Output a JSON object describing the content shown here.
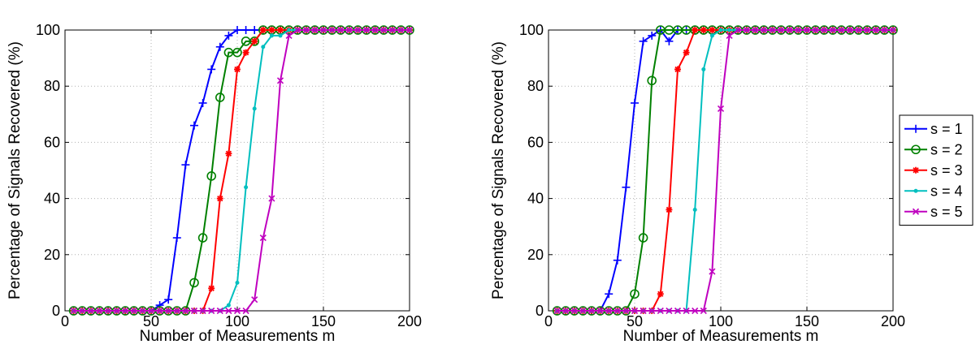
{
  "chart_data": [
    {
      "type": "line",
      "xlabel": "Number of Measurements m",
      "ylabel": "Percentage of Signals Recovered (%)",
      "xlim": [
        0,
        200
      ],
      "ylim": [
        0,
        100
      ],
      "xticks": [
        0,
        50,
        100,
        150,
        200
      ],
      "yticks": [
        0,
        20,
        40,
        60,
        80,
        100
      ],
      "grid": true,
      "legend": "none",
      "series": [
        {
          "name": "s = 1",
          "color": "#0000ff",
          "marker": "plus",
          "x": [
            5,
            10,
            15,
            20,
            25,
            30,
            35,
            40,
            45,
            50,
            55,
            60,
            65,
            70,
            75,
            80,
            85,
            90,
            95,
            100,
            105,
            110,
            115,
            120,
            125,
            130,
            135,
            140,
            145,
            150,
            155,
            160,
            165,
            170,
            175,
            180,
            185,
            190,
            195,
            200
          ],
          "y": [
            0,
            0,
            0,
            0,
            0,
            0,
            0,
            0,
            0,
            0,
            2,
            4,
            26,
            52,
            66,
            74,
            86,
            94,
            98,
            100,
            100,
            100,
            100,
            100,
            100,
            100,
            100,
            100,
            100,
            100,
            100,
            100,
            100,
            100,
            100,
            100,
            100,
            100,
            100,
            100
          ]
        },
        {
          "name": "s = 2",
          "color": "#008000",
          "marker": "circle",
          "x": [
            5,
            10,
            15,
            20,
            25,
            30,
            35,
            40,
            45,
            50,
            55,
            60,
            65,
            70,
            75,
            80,
            85,
            90,
            95,
            100,
            105,
            110,
            115,
            120,
            125,
            130,
            135,
            140,
            145,
            150,
            155,
            160,
            165,
            170,
            175,
            180,
            185,
            190,
            195,
            200
          ],
          "y": [
            0,
            0,
            0,
            0,
            0,
            0,
            0,
            0,
            0,
            0,
            0,
            0,
            0,
            0,
            10,
            26,
            48,
            76,
            92,
            92,
            96,
            96,
            100,
            100,
            100,
            100,
            100,
            100,
            100,
            100,
            100,
            100,
            100,
            100,
            100,
            100,
            100,
            100,
            100,
            100
          ]
        },
        {
          "name": "s = 3",
          "color": "#ff0000",
          "marker": "star",
          "x": [
            5,
            10,
            15,
            20,
            25,
            30,
            35,
            40,
            45,
            50,
            55,
            60,
            65,
            70,
            75,
            80,
            85,
            90,
            95,
            100,
            105,
            110,
            115,
            120,
            125,
            130,
            135,
            140,
            145,
            150,
            155,
            160,
            165,
            170,
            175,
            180,
            185,
            190,
            195,
            200
          ],
          "y": [
            0,
            0,
            0,
            0,
            0,
            0,
            0,
            0,
            0,
            0,
            0,
            0,
            0,
            0,
            0,
            0,
            8,
            40,
            56,
            86,
            92,
            96,
            100,
            100,
            100,
            100,
            100,
            100,
            100,
            100,
            100,
            100,
            100,
            100,
            100,
            100,
            100,
            100,
            100,
            100
          ]
        },
        {
          "name": "s = 4",
          "color": "#00bfbf",
          "marker": "dot",
          "x": [
            5,
            10,
            15,
            20,
            25,
            30,
            35,
            40,
            45,
            50,
            55,
            60,
            65,
            70,
            75,
            80,
            85,
            90,
            95,
            100,
            105,
            110,
            115,
            120,
            125,
            130,
            135,
            140,
            145,
            150,
            155,
            160,
            165,
            170,
            175,
            180,
            185,
            190,
            195,
            200
          ],
          "y": [
            0,
            0,
            0,
            0,
            0,
            0,
            0,
            0,
            0,
            0,
            0,
            0,
            0,
            0,
            0,
            0,
            0,
            0,
            2,
            10,
            44,
            72,
            94,
            98,
            98,
            100,
            100,
            100,
            100,
            100,
            100,
            100,
            100,
            100,
            100,
            100,
            100,
            100,
            100,
            100
          ]
        },
        {
          "name": "s = 5",
          "color": "#bf00bf",
          "marker": "x",
          "x": [
            5,
            10,
            15,
            20,
            25,
            30,
            35,
            40,
            45,
            50,
            55,
            60,
            65,
            70,
            75,
            80,
            85,
            90,
            95,
            100,
            105,
            110,
            115,
            120,
            125,
            130,
            135,
            140,
            145,
            150,
            155,
            160,
            165,
            170,
            175,
            180,
            185,
            190,
            195,
            200
          ],
          "y": [
            0,
            0,
            0,
            0,
            0,
            0,
            0,
            0,
            0,
            0,
            0,
            0,
            0,
            0,
            0,
            0,
            0,
            0,
            0,
            0,
            0,
            4,
            26,
            40,
            82,
            98,
            100,
            100,
            100,
            100,
            100,
            100,
            100,
            100,
            100,
            100,
            100,
            100,
            100,
            100
          ]
        }
      ]
    },
    {
      "type": "line",
      "xlabel": "Number of Measurements m",
      "ylabel": "Percentage of Signals Recovered (%)",
      "xlim": [
        0,
        200
      ],
      "ylim": [
        0,
        100
      ],
      "xticks": [
        0,
        50,
        100,
        150,
        200
      ],
      "yticks": [
        0,
        20,
        40,
        60,
        80,
        100
      ],
      "grid": true,
      "legend": "outside-right",
      "series": [
        {
          "name": "s = 1",
          "color": "#0000ff",
          "marker": "plus",
          "x": [
            5,
            10,
            15,
            20,
            25,
            30,
            35,
            40,
            45,
            50,
            55,
            60,
            65,
            70,
            75,
            80,
            85,
            90,
            95,
            100,
            105,
            110,
            115,
            120,
            125,
            130,
            135,
            140,
            145,
            150,
            155,
            160,
            165,
            170,
            175,
            180,
            185,
            190,
            195,
            200
          ],
          "y": [
            0,
            0,
            0,
            0,
            0,
            0,
            6,
            18,
            44,
            74,
            96,
            98,
            100,
            96,
            100,
            100,
            100,
            100,
            100,
            100,
            100,
            100,
            100,
            100,
            100,
            100,
            100,
            100,
            100,
            100,
            100,
            100,
            100,
            100,
            100,
            100,
            100,
            100,
            100,
            100
          ]
        },
        {
          "name": "s = 2",
          "color": "#008000",
          "marker": "circle",
          "x": [
            5,
            10,
            15,
            20,
            25,
            30,
            35,
            40,
            45,
            50,
            55,
            60,
            65,
            70,
            75,
            80,
            85,
            90,
            95,
            100,
            105,
            110,
            115,
            120,
            125,
            130,
            135,
            140,
            145,
            150,
            155,
            160,
            165,
            170,
            175,
            180,
            185,
            190,
            195,
            200
          ],
          "y": [
            0,
            0,
            0,
            0,
            0,
            0,
            0,
            0,
            0,
            6,
            26,
            82,
            100,
            100,
            100,
            100,
            100,
            100,
            100,
            100,
            100,
            100,
            100,
            100,
            100,
            100,
            100,
            100,
            100,
            100,
            100,
            100,
            100,
            100,
            100,
            100,
            100,
            100,
            100,
            100
          ]
        },
        {
          "name": "s = 3",
          "color": "#ff0000",
          "marker": "star",
          "x": [
            5,
            10,
            15,
            20,
            25,
            30,
            35,
            40,
            45,
            50,
            55,
            60,
            65,
            70,
            75,
            80,
            85,
            90,
            95,
            100,
            105,
            110,
            115,
            120,
            125,
            130,
            135,
            140,
            145,
            150,
            155,
            160,
            165,
            170,
            175,
            180,
            185,
            190,
            195,
            200
          ],
          "y": [
            0,
            0,
            0,
            0,
            0,
            0,
            0,
            0,
            0,
            0,
            0,
            0,
            6,
            36,
            86,
            92,
            100,
            100,
            100,
            100,
            100,
            100,
            100,
            100,
            100,
            100,
            100,
            100,
            100,
            100,
            100,
            100,
            100,
            100,
            100,
            100,
            100,
            100,
            100,
            100
          ]
        },
        {
          "name": "s = 4",
          "color": "#00bfbf",
          "marker": "dot",
          "x": [
            5,
            10,
            15,
            20,
            25,
            30,
            35,
            40,
            45,
            50,
            55,
            60,
            65,
            70,
            75,
            80,
            85,
            90,
            95,
            100,
            105,
            110,
            115,
            120,
            125,
            130,
            135,
            140,
            145,
            150,
            155,
            160,
            165,
            170,
            175,
            180,
            185,
            190,
            195,
            200
          ],
          "y": [
            0,
            0,
            0,
            0,
            0,
            0,
            0,
            0,
            0,
            0,
            0,
            0,
            0,
            0,
            0,
            0,
            36,
            86,
            98,
            100,
            100,
            100,
            100,
            100,
            100,
            100,
            100,
            100,
            100,
            100,
            100,
            100,
            100,
            100,
            100,
            100,
            100,
            100,
            100,
            100
          ]
        },
        {
          "name": "s = 5",
          "color": "#bf00bf",
          "marker": "x",
          "x": [
            5,
            10,
            15,
            20,
            25,
            30,
            35,
            40,
            45,
            50,
            55,
            60,
            65,
            70,
            75,
            80,
            85,
            90,
            95,
            100,
            105,
            110,
            115,
            120,
            125,
            130,
            135,
            140,
            145,
            150,
            155,
            160,
            165,
            170,
            175,
            180,
            185,
            190,
            195,
            200
          ],
          "y": [
            0,
            0,
            0,
            0,
            0,
            0,
            0,
            0,
            0,
            0,
            0,
            0,
            0,
            0,
            0,
            0,
            0,
            0,
            14,
            72,
            98,
            100,
            100,
            100,
            100,
            100,
            100,
            100,
            100,
            100,
            100,
            100,
            100,
            100,
            100,
            100,
            100,
            100,
            100,
            100
          ]
        }
      ]
    }
  ]
}
